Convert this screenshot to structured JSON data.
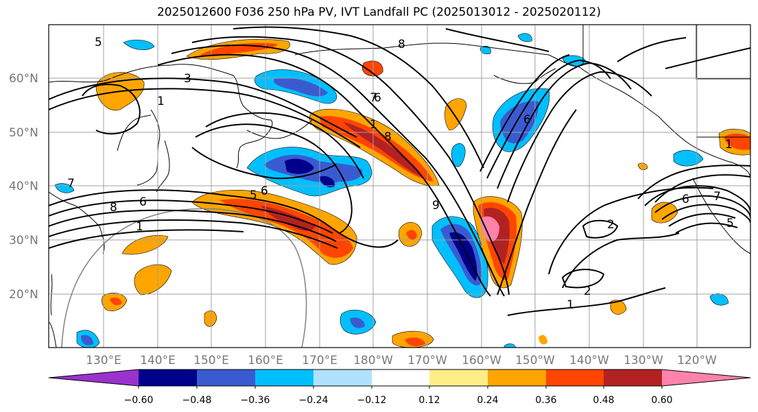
{
  "title": "2025012600 F036 250 hPa PV, IVT Landfall PC (2025013012 - 2025020112)",
  "map": {
    "lat_ticks": [
      "60°N",
      "50°N",
      "40°N",
      "30°N",
      "20°N"
    ],
    "lon_ticks": [
      "130°E",
      "140°E",
      "150°E",
      "160°E",
      "170°E",
      "180°W",
      "170°W",
      "160°W",
      "150°W",
      "140°W",
      "130°W",
      "120°W"
    ],
    "contour_labels": [
      "5",
      "1",
      "3",
      "7",
      "8",
      "6",
      "1",
      "6",
      "5",
      "6",
      "1",
      "8",
      "9",
      "7",
      "8",
      "6",
      "2",
      "2",
      "1",
      "6",
      "1",
      "7",
      "5"
    ]
  },
  "colorbar": {
    "colors": [
      "#9a32cd",
      "#00008b",
      "#3a5bd0",
      "#00bfff",
      "#b0e2ff",
      "#ffffff",
      "#ffee88",
      "#ffa500",
      "#ff4500",
      "#b22222",
      "#ff82ab"
    ],
    "ticks": [
      "−0.60",
      "−0.48",
      "−0.36",
      "−0.24",
      "−0.12",
      "0.12",
      "0.24",
      "0.36",
      "0.48",
      "0.60"
    ]
  }
}
